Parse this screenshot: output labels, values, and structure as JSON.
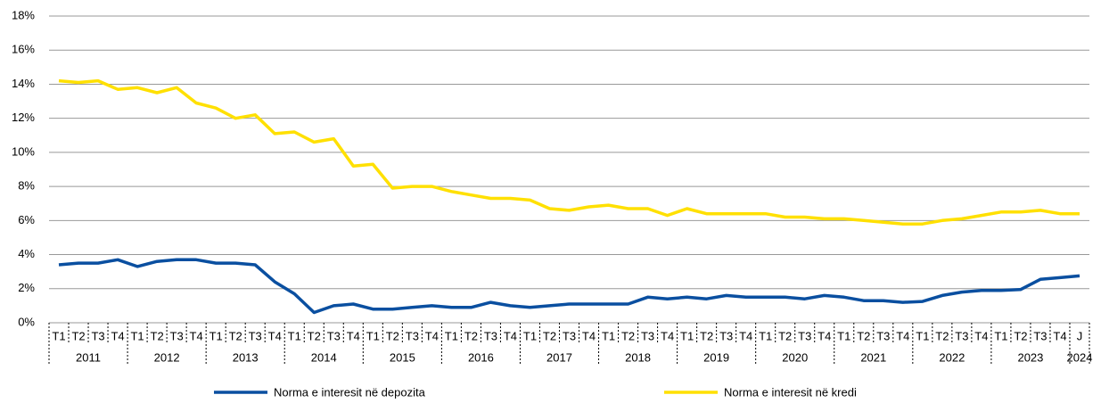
{
  "chart_data": {
    "type": "line",
    "category_groups": [
      {
        "name": "2011",
        "categories": [
          "T1",
          "T2",
          "T3",
          "T4"
        ]
      },
      {
        "name": "2012",
        "categories": [
          "T1",
          "T2",
          "T3",
          "T4"
        ]
      },
      {
        "name": "2013",
        "categories": [
          "T1",
          "T2",
          "T3",
          "T4"
        ]
      },
      {
        "name": "2014",
        "categories": [
          "T1",
          "T2",
          "T3",
          "T4"
        ]
      },
      {
        "name": "2015",
        "categories": [
          "T1",
          "T2",
          "T3",
          "T4"
        ]
      },
      {
        "name": "2016",
        "categories": [
          "T1",
          "T2",
          "T3",
          "T4"
        ]
      },
      {
        "name": "2017",
        "categories": [
          "T1",
          "T2",
          "T3",
          "T4"
        ]
      },
      {
        "name": "2018",
        "categories": [
          "T1",
          "T2",
          "T3",
          "T4"
        ]
      },
      {
        "name": "2019",
        "categories": [
          "T1",
          "T2",
          "T3",
          "T4"
        ]
      },
      {
        "name": "2020",
        "categories": [
          "T1",
          "T2",
          "T3",
          "T4"
        ]
      },
      {
        "name": "2021",
        "categories": [
          "T1",
          "T2",
          "T3",
          "T4"
        ]
      },
      {
        "name": "2022",
        "categories": [
          "T1",
          "T2",
          "T3",
          "T4"
        ]
      },
      {
        "name": "2023",
        "categories": [
          "T1",
          "T2",
          "T3",
          "T4"
        ]
      },
      {
        "name": "2024",
        "categories": [
          "J"
        ]
      }
    ],
    "series": [
      {
        "name": "Norma e interesit në depozita",
        "color": "#0a4fa0",
        "values": [
          3.4,
          3.5,
          3.5,
          3.7,
          3.3,
          3.6,
          3.7,
          3.7,
          3.5,
          3.5,
          3.4,
          2.4,
          1.7,
          0.6,
          1.0,
          1.1,
          0.8,
          0.8,
          0.9,
          1.0,
          0.9,
          0.9,
          1.2,
          1.0,
          0.9,
          1.0,
          1.1,
          1.1,
          1.1,
          1.1,
          1.5,
          1.4,
          1.5,
          1.4,
          1.6,
          1.5,
          1.5,
          1.5,
          1.4,
          1.6,
          1.5,
          1.3,
          1.3,
          1.2,
          1.25,
          1.6,
          1.8,
          1.9,
          1.9,
          1.95,
          2.55,
          2.65,
          2.75
        ]
      },
      {
        "name": "Norma e interesit në kredi",
        "color": "#ffe000",
        "values": [
          14.2,
          14.1,
          14.2,
          13.7,
          13.8,
          13.5,
          13.8,
          12.9,
          12.6,
          12.0,
          12.2,
          11.1,
          11.2,
          10.6,
          10.8,
          9.2,
          9.3,
          7.9,
          8.0,
          8.0,
          7.7,
          7.5,
          7.3,
          7.3,
          7.2,
          6.7,
          6.6,
          6.8,
          6.9,
          6.7,
          6.7,
          6.3,
          6.7,
          6.4,
          6.4,
          6.4,
          6.4,
          6.2,
          6.2,
          6.1,
          6.1,
          6.0,
          5.9,
          5.8,
          5.8,
          6.0,
          6.1,
          6.3,
          6.5,
          6.5,
          6.6,
          6.4,
          6.4
        ]
      }
    ],
    "ylim": [
      0,
      18
    ],
    "yticks": [
      {
        "value": 0,
        "label": "0%"
      },
      {
        "value": 2,
        "label": "2%"
      },
      {
        "value": 4,
        "label": "4%"
      },
      {
        "value": 6,
        "label": "6%"
      },
      {
        "value": 8,
        "label": "8%"
      },
      {
        "value": 10,
        "label": "10%"
      },
      {
        "value": 12,
        "label": "12%"
      },
      {
        "value": 14,
        "label": "14%"
      },
      {
        "value": 16,
        "label": "16%"
      },
      {
        "value": 18,
        "label": "18%"
      }
    ],
    "grid": true
  }
}
